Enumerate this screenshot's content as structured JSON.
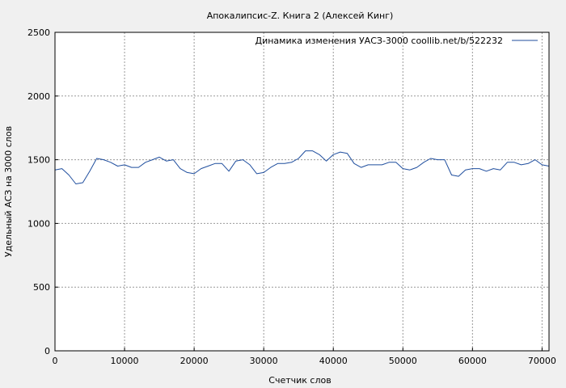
{
  "chart_data": {
    "type": "line",
    "title": "Апокалипсис-Z. Книга 2 (Алексей Кинг)",
    "xlabel": "Счетчик слов",
    "ylabel": "Удельный АСЗ на 3000 слов",
    "xlim": [
      0,
      71000
    ],
    "ylim": [
      0,
      2500
    ],
    "xticks": [
      0,
      10000,
      20000,
      30000,
      40000,
      50000,
      60000,
      70000
    ],
    "yticks": [
      0,
      500,
      1000,
      1500,
      2000,
      2500
    ],
    "grid": true,
    "legend_position": "top-right",
    "series": [
      {
        "name": "Динамика изменения УАСЗ-3000  coollib.net/b/522232",
        "color": "#1f4e9e",
        "x": [
          0,
          1000,
          2000,
          3000,
          4000,
          5000,
          6000,
          7000,
          8000,
          9000,
          10000,
          11000,
          12000,
          13000,
          14000,
          15000,
          16000,
          17000,
          18000,
          19000,
          20000,
          21000,
          22000,
          23000,
          24000,
          25000,
          26000,
          27000,
          28000,
          29000,
          30000,
          31000,
          32000,
          33000,
          34000,
          35000,
          36000,
          37000,
          38000,
          39000,
          40000,
          41000,
          42000,
          43000,
          44000,
          45000,
          46000,
          47000,
          48000,
          49000,
          50000,
          51000,
          52000,
          53000,
          54000,
          55000,
          56000,
          57000,
          58000,
          59000,
          60000,
          61000,
          62000,
          63000,
          64000,
          65000,
          66000,
          67000,
          68000,
          69000,
          70000,
          71000
        ],
        "y": [
          1420,
          1430,
          1380,
          1310,
          1320,
          1410,
          1510,
          1500,
          1480,
          1450,
          1460,
          1440,
          1440,
          1480,
          1500,
          1520,
          1490,
          1500,
          1430,
          1400,
          1390,
          1430,
          1450,
          1470,
          1470,
          1410,
          1490,
          1500,
          1460,
          1390,
          1400,
          1440,
          1470,
          1470,
          1480,
          1510,
          1570,
          1570,
          1540,
          1490,
          1540,
          1560,
          1550,
          1470,
          1440,
          1460,
          1460,
          1460,
          1480,
          1480,
          1430,
          1420,
          1440,
          1480,
          1510,
          1500,
          1500,
          1380,
          1370,
          1420,
          1430,
          1430,
          1410,
          1430,
          1420,
          1480,
          1480,
          1460,
          1470,
          1500,
          1460,
          1450
        ]
      }
    ]
  }
}
